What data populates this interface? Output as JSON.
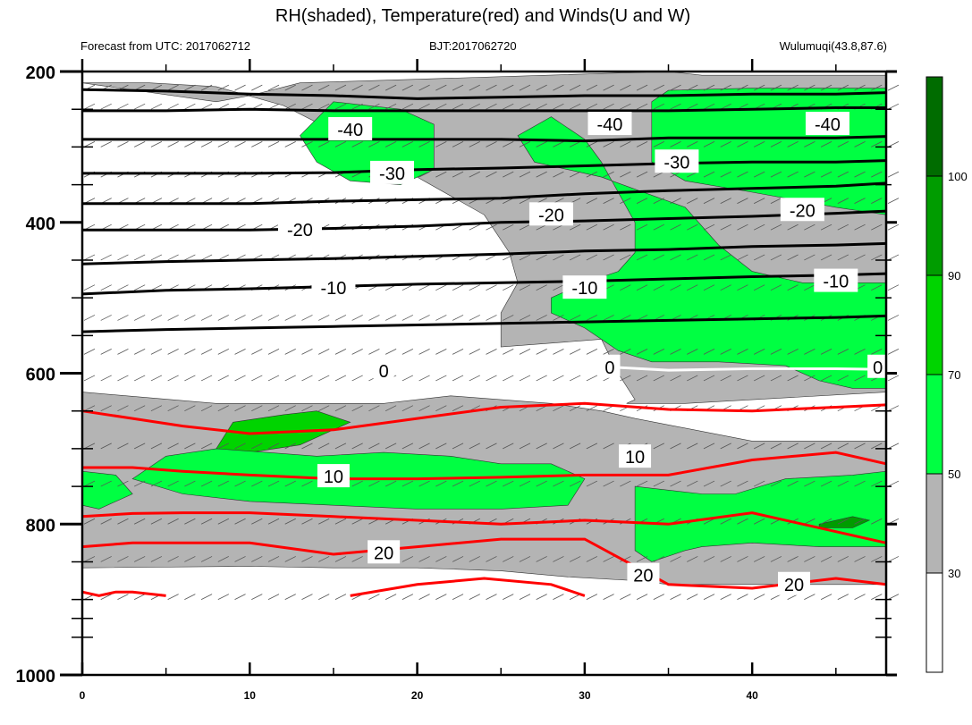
{
  "header": {
    "title": "RH(shaded), Temperature(red) and Winds(U and W)",
    "left": "Forecast from UTC: 2017062712",
    "center": "BJT:2017062720",
    "right": "Wulumuqi(43.8,87.6)"
  },
  "colors": {
    "rh_30_50": "#b4b4b4",
    "rh_50_70": "#00ff42",
    "rh_70_90": "#00d400",
    "rh_90_100": "#009c00",
    "rh_100_plus": "#006c00",
    "temperature": "#ff0000",
    "isotherm_black": "#000000",
    "freezing_line": "#ffffff"
  },
  "chart_data": {
    "type": "contour",
    "x": {
      "label": "",
      "range": [
        0,
        48
      ],
      "ticks": [
        0,
        10,
        20,
        30,
        40
      ],
      "minor_step": 5
    },
    "y": {
      "label": "",
      "range": [
        1000,
        200
      ],
      "ticks": [
        200,
        400,
        600,
        800,
        1000
      ],
      "minor_levels": [
        250,
        300,
        350,
        450,
        500,
        550,
        650,
        700,
        750,
        850,
        900,
        925,
        950
      ]
    },
    "colorbar": {
      "levels": [
        30,
        50,
        70,
        90,
        100
      ],
      "tick_labels": [
        "30",
        "50",
        "70",
        "90",
        "100"
      ]
    },
    "wind_barb_levels": [
      225,
      250,
      300,
      340,
      375,
      410,
      450,
      490,
      530,
      575,
      610,
      650,
      700,
      750,
      800,
      850,
      900
    ],
    "isotherms": [
      {
        "value": -40,
        "x": [
          0,
          5,
          10,
          15,
          20,
          25,
          30,
          35,
          40,
          45,
          48
        ],
        "p": [
          224,
          226,
          230,
          232,
          236,
          234,
          232,
          232,
          230,
          230,
          228
        ]
      },
      {
        "value": -40,
        "x": [
          0,
          5,
          10,
          15,
          20,
          25,
          30,
          35,
          40,
          45,
          48
        ],
        "p": [
          252,
          252,
          250,
          252,
          252,
          252,
          252,
          252,
          250,
          248,
          248
        ]
      },
      {
        "value": -40,
        "x": [
          0,
          5,
          10,
          15,
          20,
          25,
          30,
          35,
          40,
          45,
          48
        ],
        "p": [
          290,
          290,
          290,
          290,
          290,
          290,
          292,
          288,
          288,
          288,
          286
        ]
      },
      {
        "value": -30,
        "x": [
          0,
          5,
          10,
          15,
          20,
          25,
          30,
          35,
          40,
          45,
          48
        ],
        "p": [
          335,
          335,
          335,
          334,
          330,
          328,
          325,
          322,
          320,
          320,
          318
        ]
      },
      {
        "value": -30,
        "x": [
          0,
          5,
          10,
          15,
          20,
          25,
          30,
          35,
          40,
          45,
          48
        ],
        "p": [
          375,
          375,
          375,
          372,
          370,
          368,
          362,
          358,
          355,
          352,
          348
        ]
      },
      {
        "value": -20,
        "x": [
          0,
          5,
          10,
          15,
          20,
          25,
          30,
          35,
          40,
          45,
          48
        ],
        "p": [
          410,
          410,
          410,
          408,
          405,
          400,
          398,
          395,
          392,
          388,
          385
        ]
      },
      {
        "value": -10,
        "x": [
          0,
          5,
          10,
          15,
          20,
          25,
          30,
          35,
          40,
          45,
          48
        ],
        "p": [
          455,
          452,
          450,
          448,
          445,
          442,
          438,
          436,
          432,
          430,
          428
        ]
      },
      {
        "value": -10,
        "x": [
          0,
          5,
          10,
          15,
          20,
          25,
          30,
          35,
          40,
          45,
          48
        ],
        "p": [
          495,
          490,
          488,
          485,
          482,
          480,
          478,
          475,
          472,
          470,
          468
        ]
      },
      {
        "value": 0,
        "x": [
          0,
          5,
          10,
          15,
          20,
          25,
          30,
          35,
          40,
          45,
          48
        ],
        "p": [
          545,
          542,
          540,
          538,
          536,
          534,
          532,
          530,
          528,
          526,
          524
        ]
      }
    ],
    "red_isotherms": [
      {
        "value": 10,
        "x": [
          0,
          3,
          6,
          10,
          15,
          20,
          25,
          30,
          35,
          40,
          45,
          48
        ],
        "p": [
          650,
          660,
          670,
          680,
          675,
          660,
          645,
          640,
          648,
          650,
          645,
          642
        ]
      },
      {
        "value": 10,
        "x": [
          0,
          3,
          6,
          10,
          15,
          20,
          25,
          30,
          35,
          40,
          45,
          48
        ],
        "p": [
          725,
          725,
          730,
          735,
          740,
          740,
          738,
          735,
          735,
          715,
          705,
          720
        ]
      },
      {
        "value": 20,
        "x": [
          0,
          3,
          6,
          10,
          15,
          20,
          25,
          30,
          35,
          40,
          45,
          48
        ],
        "p": [
          790,
          786,
          785,
          785,
          790,
          795,
          800,
          795,
          800,
          785,
          810,
          825
        ]
      },
      {
        "value": 20,
        "x": [
          0,
          3,
          6,
          10,
          15,
          20,
          25,
          30,
          35,
          40,
          45,
          48
        ],
        "p": [
          830,
          825,
          825,
          825,
          840,
          830,
          820,
          820,
          880,
          885,
          872,
          880
        ]
      },
      {
        "value": 20,
        "x": [
          0,
          1,
          2,
          3,
          5
        ],
        "p": [
          890,
          895,
          890,
          890,
          895
        ]
      },
      {
        "value": 20,
        "x": [
          16,
          20,
          24,
          28,
          30
        ],
        "p": [
          895,
          880,
          872,
          880,
          895
        ]
      }
    ],
    "labels": [
      {
        "text": "-40",
        "x": 16,
        "p": 277
      },
      {
        "text": "-40",
        "x": 31.5,
        "p": 270
      },
      {
        "text": "-40",
        "x": 44.5,
        "p": 270
      },
      {
        "text": "-30",
        "x": 18.5,
        "p": 335
      },
      {
        "text": "-30",
        "x": 35.5,
        "p": 320
      },
      {
        "text": "-20",
        "x": 13,
        "p": 410
      },
      {
        "text": "-20",
        "x": 28,
        "p": 390
      },
      {
        "text": "-20",
        "x": 43,
        "p": 384
      },
      {
        "text": "-10",
        "x": 15,
        "p": 487
      },
      {
        "text": "-10",
        "x": 30,
        "p": 487
      },
      {
        "text": "-10",
        "x": 45,
        "p": 478
      },
      {
        "text": "0",
        "x": 18,
        "p": 597
      },
      {
        "text": "0",
        "x": 31.5,
        "p": 592
      },
      {
        "text": "0",
        "x": 47.5,
        "p": 592
      },
      {
        "text": "10",
        "x": 15,
        "p": 737
      },
      {
        "text": "10",
        "x": 33,
        "p": 711
      },
      {
        "text": "20",
        "x": 18,
        "p": 838
      },
      {
        "text": "20",
        "x": 33.5,
        "p": 868
      },
      {
        "text": "20",
        "x": 42.5,
        "p": 880
      }
    ]
  }
}
